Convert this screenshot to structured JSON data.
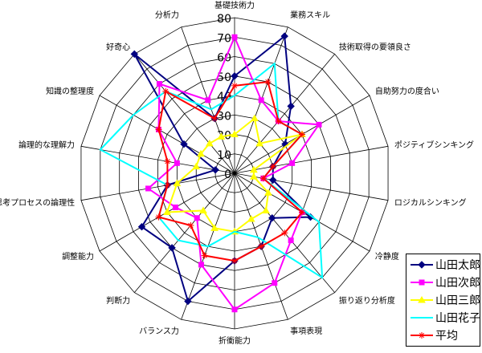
{
  "chart_data": {
    "type": "radar",
    "axes": [
      "基礎技術力",
      "業務スキル",
      "技術取得の要領良さ",
      "自助努力の度合い",
      "ポジティブシンキング",
      "ロジカルシンキング",
      "冷静度",
      "振り返り分析度",
      "事項表現",
      "折衝能力",
      "バランス力",
      "判断力",
      "調整能力",
      "思考プロセスの論理性",
      "論理的な理解力",
      "知識の整理度",
      "好奇心",
      "分析力"
    ],
    "rlim": [
      0,
      80
    ],
    "ticks": [
      0,
      10,
      20,
      30,
      40,
      50,
      60,
      70,
      80
    ],
    "series": [
      {
        "name": "山田太郎",
        "color": "#000080",
        "marker": "diamond",
        "values": [
          50,
          75,
          45,
          30,
          20,
          20,
          45,
          30,
          40,
          45,
          70,
          50,
          55,
          35,
          10,
          30,
          80,
          30
        ]
      },
      {
        "name": "山田次郎",
        "color": "#ff00ff",
        "marker": "square",
        "values": [
          70,
          40,
          35,
          50,
          30,
          15,
          40,
          45,
          60,
          70,
          50,
          30,
          35,
          45,
          30,
          45,
          60,
          40
        ]
      },
      {
        "name": "山田三郎",
        "color": "#ffff00",
        "marker": "triangle",
        "values": [
          20,
          30,
          20,
          40,
          10,
          10,
          20,
          25,
          25,
          30,
          30,
          25,
          40,
          30,
          20,
          20,
          20,
          20
        ]
      },
      {
        "name": "山田花子",
        "color": "#00ffff",
        "marker": "none",
        "values": [
          40,
          60,
          35,
          40,
          20,
          15,
          50,
          70,
          35,
          30,
          40,
          45,
          45,
          35,
          70,
          60,
          55,
          35
        ]
      },
      {
        "name": "平均",
        "color": "#ff0000",
        "marker": "asterisk",
        "values": [
          45,
          50,
          35,
          40,
          20,
          15,
          40,
          40,
          40,
          45,
          45,
          35,
          45,
          35,
          35,
          45,
          55,
          30
        ]
      }
    ],
    "legend_position": "bottom-right"
  }
}
